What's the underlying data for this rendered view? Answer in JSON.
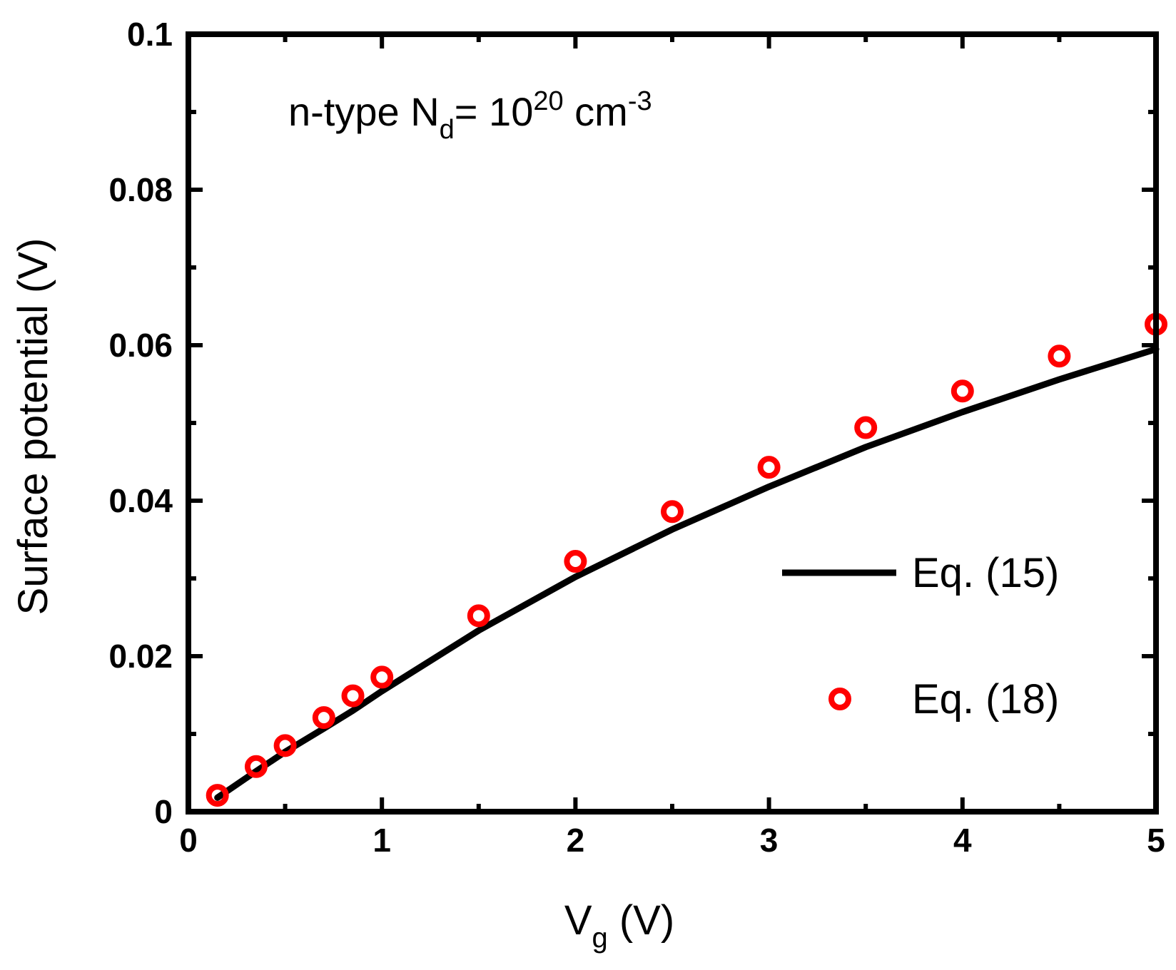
{
  "chart_data": {
    "type": "line+scatter",
    "xlabel": {
      "main": "V",
      "sub": "g",
      "unit": " (V)"
    },
    "ylabel": "Surface potential (V)",
    "xlim": [
      0,
      5
    ],
    "ylim": [
      0,
      0.1
    ],
    "xticks": [
      0,
      1,
      2,
      3,
      4,
      5
    ],
    "xtick_labels": [
      "0",
      "1",
      "2",
      "3",
      "4",
      "5"
    ],
    "yticks": [
      0,
      0.02,
      0.04,
      0.06,
      0.08,
      0.1
    ],
    "ytick_labels": [
      "0",
      "0.02",
      "0.04",
      "0.06",
      "0.08",
      "0.1"
    ],
    "annotation": {
      "prefix": "n-type N",
      "sub": "d",
      "mid": "= 10",
      "sup": "20",
      "unit": " cm",
      "sup2": "-3"
    },
    "legend_position": "right",
    "series": [
      {
        "name": "Eq. (15)",
        "style": "line",
        "color": "#000000",
        "x": [
          0.15,
          0.35,
          0.5,
          0.7,
          0.85,
          1.0,
          1.5,
          2.0,
          2.5,
          3.0,
          3.5,
          4.0,
          4.5,
          5.0
        ],
        "y": [
          0.0018,
          0.0052,
          0.0077,
          0.0107,
          0.013,
          0.0155,
          0.0233,
          0.0302,
          0.0363,
          0.0418,
          0.0469,
          0.0514,
          0.0556,
          0.0595
        ]
      },
      {
        "name": "Eq. (18)",
        "style": "scatter",
        "marker": "open-circle",
        "color": "#ff0000",
        "x": [
          0.15,
          0.35,
          0.5,
          0.7,
          0.85,
          1.0,
          1.5,
          2.0,
          2.5,
          3.0,
          3.5,
          4.0,
          4.5,
          5.0
        ],
        "y": [
          0.0021,
          0.0058,
          0.0085,
          0.0121,
          0.0149,
          0.0173,
          0.0252,
          0.0322,
          0.0386,
          0.0443,
          0.0494,
          0.0541,
          0.0586,
          0.0627
        ]
      }
    ]
  }
}
